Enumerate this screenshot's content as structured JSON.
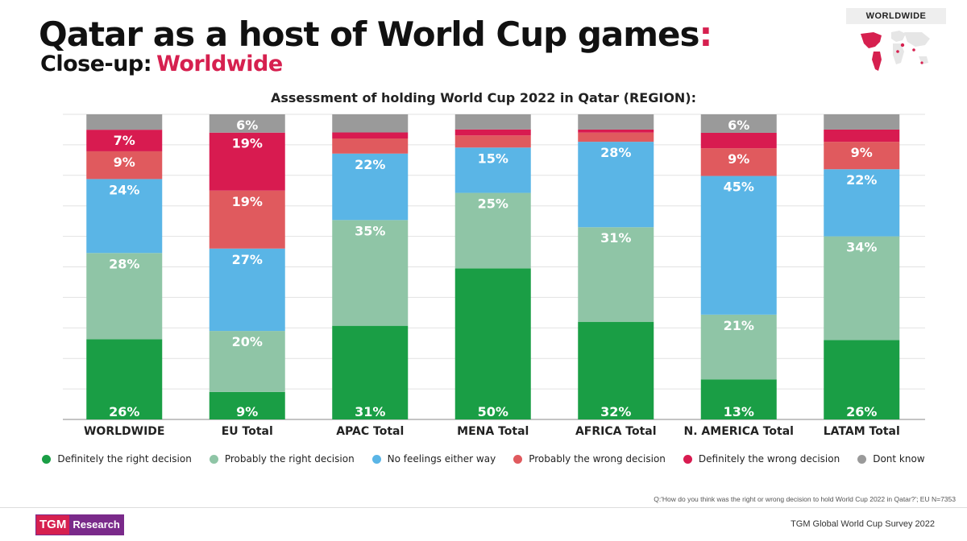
{
  "header": {
    "title": "Qatar as a host of World Cup games",
    "title_colon": ":",
    "subtitle_prefix": "Close-up:",
    "subtitle_accent": "Worldwide",
    "badge": "WORLDWIDE",
    "map_icon": "world-map-icon"
  },
  "colors": {
    "accent": "#d6204f",
    "definitely_right": "#1a9e45",
    "probably_right": "#8fc5a6",
    "no_feelings": "#5ab5e6",
    "probably_wrong": "#e05a5e",
    "definitely_wrong": "#d81b50",
    "dont_know": "#9a9a9a"
  },
  "chart_data": {
    "type": "bar",
    "stacked": true,
    "orientation": "vertical",
    "title": "Assessment of holding World Cup 2022 in Qatar (REGION):",
    "ylim": [
      0,
      100
    ],
    "grid": true,
    "legend_position": "bottom",
    "categories": [
      "WORLDWIDE",
      "EU Total",
      "APAC Total",
      "MENA Total",
      "AFRICA Total",
      "N. AMERICA Total",
      "LATAM Total"
    ],
    "series": [
      {
        "name": "Definitely the right decision",
        "color": "#1a9e45",
        "values": [
          26,
          9,
          31,
          50,
          32,
          13,
          26
        ],
        "labels": [
          "26%",
          "9%",
          "31%",
          "50%",
          "32%",
          "13%",
          "26%"
        ]
      },
      {
        "name": "Probably the right decision",
        "color": "#8fc5a6",
        "values": [
          28,
          20,
          35,
          25,
          31,
          21,
          34
        ],
        "labels": [
          "28%",
          "20%",
          "35%",
          "25%",
          "31%",
          "21%",
          "34%"
        ]
      },
      {
        "name": "No feelings either way",
        "color": "#5ab5e6",
        "values": [
          24,
          27,
          22,
          15,
          28,
          45,
          22
        ],
        "labels": [
          "24%",
          "27%",
          "22%",
          "15%",
          "28%",
          "45%",
          "22%"
        ]
      },
      {
        "name": "Probably the wrong decision",
        "color": "#e05a5e",
        "values": [
          9,
          19,
          5,
          4,
          3,
          9,
          9
        ],
        "labels": [
          "9%",
          "19%",
          "",
          "",
          "",
          "9%",
          "9%"
        ]
      },
      {
        "name": "Definitely the wrong decision",
        "color": "#d81b50",
        "values": [
          7,
          19,
          2,
          2,
          1,
          5,
          4
        ],
        "labels": [
          "7%",
          "19%",
          "",
          "",
          "",
          "",
          ""
        ]
      },
      {
        "name": "Dont know",
        "color": "#9a9a9a",
        "values": [
          5,
          6,
          6,
          5,
          5,
          6,
          5
        ],
        "labels": [
          "",
          "6%",
          "",
          "",
          "",
          "6%",
          ""
        ]
      }
    ]
  },
  "footnote": "Q:'How do you think was the right or wrong decision to hold World Cup 2022 in Qatar?'; EU N=7353",
  "footer": {
    "logo_left": "TGM",
    "logo_right": "Research",
    "survey_name": "TGM Global World Cup Survey 2022"
  }
}
